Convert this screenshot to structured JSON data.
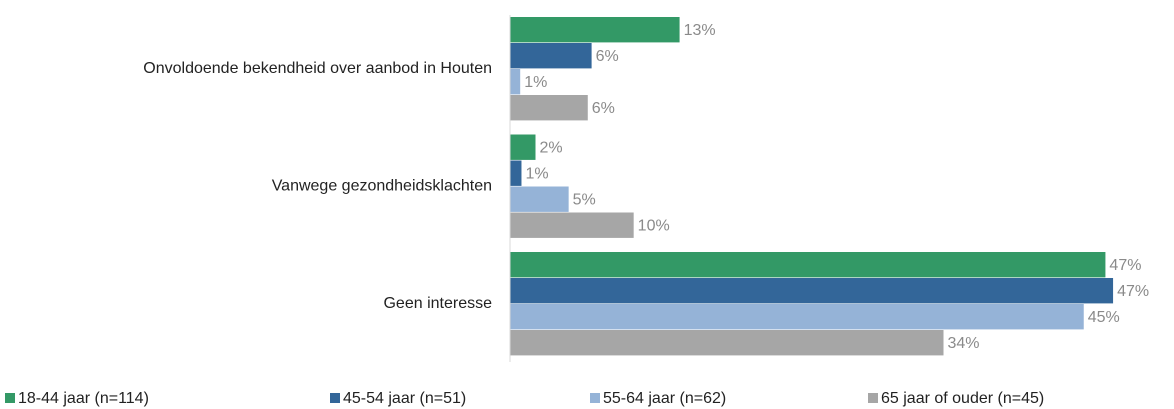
{
  "chart_data": {
    "type": "bar",
    "orientation": "horizontal",
    "categories": [
      "Onvoldoende bekendheid over aanbod in Houten",
      "Vanwege gezondheidsklachten",
      "Geen interesse"
    ],
    "series": [
      {
        "name": "18-44 jaar (n=114)",
        "color": "#339966",
        "values": [
          13.3,
          2.0,
          46.7
        ],
        "value_labels": [
          "13%",
          "2%",
          "47%"
        ]
      },
      {
        "name": "45-54 jaar (n=51)",
        "color": "#336699",
        "values": [
          6.4,
          0.9,
          47.3
        ],
        "value_labels": [
          "6%",
          "1%",
          "47%"
        ]
      },
      {
        "name": "55-64 jaar (n=62)",
        "color": "#95b3d7",
        "values": [
          0.8,
          4.6,
          45.0
        ],
        "value_labels": [
          "1%",
          "5%",
          "45%"
        ]
      },
      {
        "name": "65 jaar of ouder (n=45)",
        "color": "#a6a6a6",
        "values": [
          6.1,
          9.7,
          34.0
        ],
        "value_labels": [
          "6%",
          "10%",
          "34%"
        ]
      }
    ],
    "xlim": [
      0,
      50
    ],
    "legend": "bottom"
  }
}
